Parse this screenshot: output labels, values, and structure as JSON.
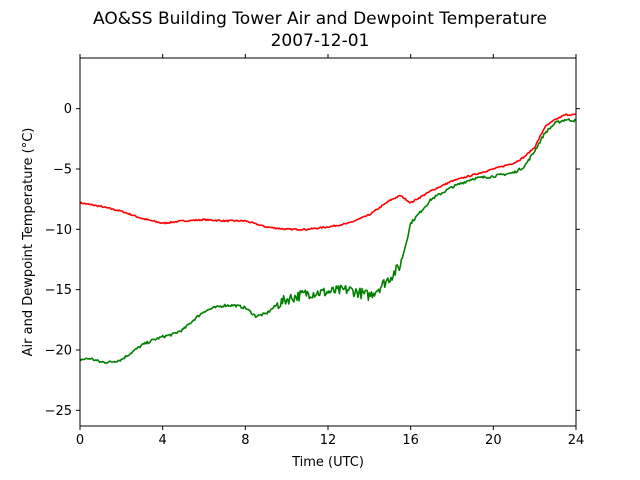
{
  "chart_data": {
    "type": "line",
    "title": "AO&SS Building Tower Air and Dewpoint Temperature",
    "subtitle": "2007-12-01",
    "xlabel": "Time (UTC)",
    "ylabel": "Air and Dewpoint Temperature (°C)",
    "xlim": [
      0,
      24
    ],
    "ylim": [
      -26.3,
      4.2
    ],
    "xticks": [
      0,
      4,
      8,
      12,
      16,
      20,
      24
    ],
    "yticks": [
      -25,
      -20,
      -15,
      -10,
      -5,
      0
    ],
    "grid": false,
    "legend": "none",
    "series": [
      {
        "color": "#ff0000",
        "x": [
          0,
          1,
          2,
          3,
          4,
          5,
          6,
          7,
          8,
          9,
          10,
          11,
          12,
          13,
          14,
          15,
          15.5,
          16,
          17,
          18,
          19,
          20,
          21,
          21.5,
          22,
          22.5,
          23,
          23.5,
          24
        ],
        "values": [
          -7.8,
          -8.1,
          -8.5,
          -9.1,
          -9.5,
          -9.3,
          -9.2,
          -9.3,
          -9.3,
          -9.8,
          -10.0,
          -10.0,
          -9.8,
          -9.5,
          -8.8,
          -7.6,
          -7.2,
          -7.8,
          -6.8,
          -6.0,
          -5.5,
          -5.0,
          -4.5,
          -4.0,
          -3.2,
          -1.5,
          -0.9,
          -0.5,
          -0.5
        ]
      },
      {
        "color": "#008000",
        "x": [
          0,
          0.5,
          1,
          1.5,
          2,
          2.5,
          3,
          3.5,
          4,
          4.5,
          5,
          5.5,
          6,
          6.5,
          7,
          7.5,
          8,
          8.5,
          9,
          9.5,
          10,
          11,
          12,
          13,
          14,
          14.5,
          15,
          15.5,
          15.8,
          16,
          16.5,
          17,
          18,
          19,
          20,
          21,
          21.5,
          22,
          22.5,
          23,
          23.5,
          24
        ],
        "values": [
          -20.8,
          -20.7,
          -21.0,
          -21.0,
          -20.8,
          -20.2,
          -19.6,
          -19.2,
          -18.9,
          -18.7,
          -18.3,
          -17.5,
          -16.8,
          -16.5,
          -16.3,
          -16.3,
          -16.5,
          -17.2,
          -17.0,
          -16.3,
          -15.8,
          -15.3,
          -15.2,
          -15.0,
          -15.5,
          -14.8,
          -14.0,
          -13.0,
          -11.0,
          -9.5,
          -8.5,
          -7.5,
          -6.5,
          -5.8,
          -5.6,
          -5.3,
          -4.8,
          -3.5,
          -2.0,
          -1.2,
          -0.9,
          -1.0
        ]
      }
    ]
  }
}
